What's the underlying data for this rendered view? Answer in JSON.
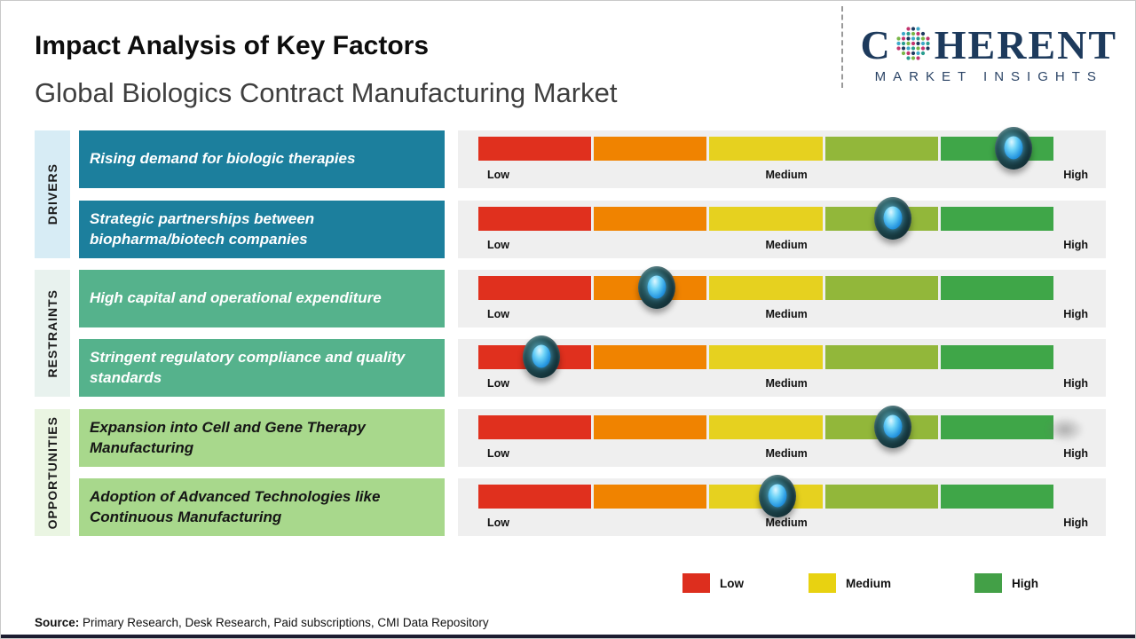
{
  "header": {
    "title": "Impact Analysis of Key Factors",
    "subtitle": "Global Biologics Contract Manufacturing Market",
    "logo": {
      "part1": "C",
      "part2": "HERENT",
      "tagline": "MARKET INSIGHTS",
      "brand_navy": "#1d3a5c",
      "globe_colors": [
        "#2a9d8f",
        "#7ab648",
        "#c2356e",
        "#1f3a5f",
        "#3fa9c9"
      ]
    }
  },
  "groups": [
    {
      "label": "DRIVERS",
      "bg": "#d7ecf5"
    },
    {
      "label": "RESTRAINTS",
      "bg": "#e8f2ee"
    },
    {
      "label": "OPPORTUNITIES",
      "bg": "#eaf5e2"
    }
  ],
  "factor_colors": {
    "drivers_box": "#1c7f9d",
    "restraints_box": "#55b28c",
    "opportunities_box": "#a8d88c"
  },
  "bar_colors": [
    "#e0301e",
    "#f08300",
    "#e6d11f",
    "#92b73a",
    "#3fa648"
  ],
  "scale_labels": {
    "low": "Low",
    "medium": "Medium",
    "high": "High"
  },
  "legend": [
    {
      "label": "Low",
      "color": "#dd2e1e"
    },
    {
      "label": "Medium",
      "color": "#e8d211"
    },
    {
      "label": "High",
      "color": "#43a047"
    }
  ],
  "source": {
    "prefix": "Source:",
    "text": " Primary Research, Desk Research, Paid subscriptions, CMI Data Repository"
  },
  "chart_data": {
    "type": "bar",
    "title": "Impact Analysis of Key Factors",
    "subtitle": "Global Biologics Contract Manufacturing Market",
    "scale": [
      "Low",
      "Medium",
      "High"
    ],
    "scale_range_pct": [
      0,
      100
    ],
    "segment_colors": [
      "#e0301e",
      "#f08300",
      "#e6d11f",
      "#92b73a",
      "#3fa648"
    ],
    "legend_position": "bottom",
    "series": [
      {
        "group": "Drivers",
        "factor": "Rising demand for biologic therapies",
        "impact_pct": 93,
        "impact_level": "High"
      },
      {
        "group": "Drivers",
        "factor": "Strategic partnerships between biopharma/biotech companies",
        "impact_pct": 72,
        "impact_level": "Medium-High"
      },
      {
        "group": "Restraints",
        "factor": "High capital and operational expenditure",
        "impact_pct": 31,
        "impact_level": "Low-Medium"
      },
      {
        "group": "Restraints",
        "factor": "Stringent regulatory compliance and quality standards",
        "impact_pct": 11,
        "impact_level": "Low"
      },
      {
        "group": "Opportunities",
        "factor": "Expansion into Cell and Gene Therapy Manufacturing",
        "impact_pct": 72,
        "impact_level": "Medium-High"
      },
      {
        "group": "Opportunities",
        "factor": "Adoption of Advanced Technologies like Continuous Manufacturing",
        "impact_pct": 52,
        "impact_level": "Medium"
      }
    ]
  }
}
